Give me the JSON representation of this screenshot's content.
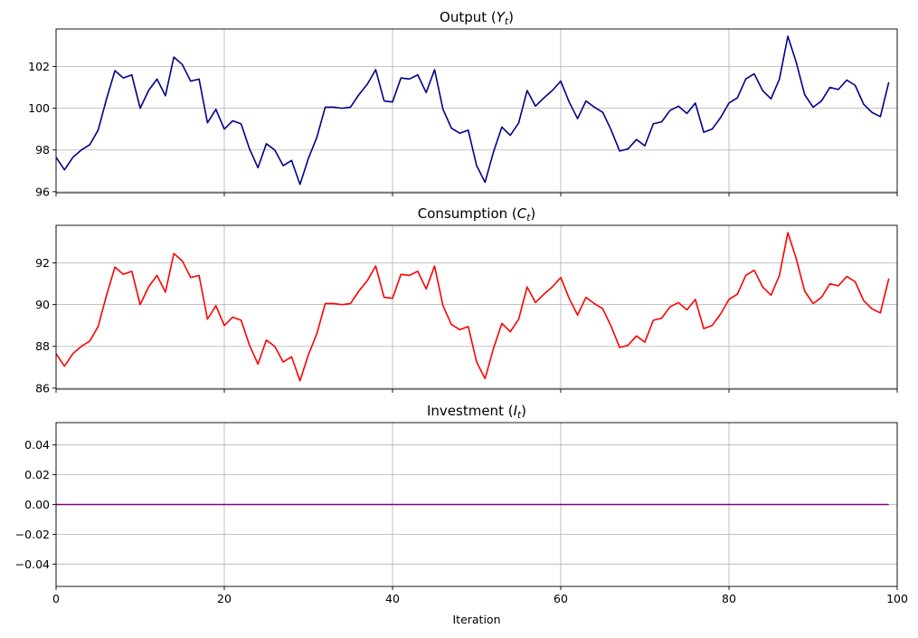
{
  "figure": {
    "xlabel": "Iteration"
  },
  "chart_data": [
    {
      "type": "line",
      "title_text": "Output (",
      "title_var": "Y",
      "title_sub": "t",
      "title_end": ")",
      "xlim": [
        0,
        100
      ],
      "ylim": [
        95.95,
        103.8
      ],
      "xticks": [
        0,
        20,
        40,
        60,
        80,
        100
      ],
      "xtick_labels_visible": false,
      "yticks": [
        96,
        98,
        100,
        102
      ],
      "grid": true,
      "series": [
        {
          "color": "#00008b",
          "x": [
            0,
            1,
            2,
            3,
            4,
            5,
            6,
            7,
            8,
            9,
            10,
            11,
            12,
            13,
            14,
            15,
            16,
            17,
            18,
            19,
            20,
            21,
            22,
            23,
            24,
            25,
            26,
            27,
            28,
            29,
            30,
            31,
            32,
            33,
            34,
            35,
            36,
            37,
            38,
            39,
            40,
            41,
            42,
            43,
            44,
            45,
            46,
            47,
            48,
            49,
            50,
            51,
            52,
            53,
            54,
            55,
            56,
            57,
            58,
            59,
            60,
            61,
            62,
            63,
            64,
            65,
            66,
            67,
            68,
            69,
            70,
            71,
            72,
            73,
            74,
            75,
            76,
            77,
            78,
            79,
            80,
            81,
            82,
            83,
            84,
            85,
            86,
            87,
            88,
            89,
            90,
            91,
            92,
            93,
            94,
            95,
            96,
            97,
            98,
            99
          ],
          "values": [
            97.65,
            97.05,
            97.65,
            98.0,
            98.25,
            98.95,
            100.45,
            101.8,
            101.45,
            101.6,
            100.0,
            100.85,
            101.4,
            100.6,
            102.45,
            102.1,
            101.3,
            101.4,
            99.3,
            99.95,
            99.0,
            99.4,
            99.25,
            98.05,
            97.15,
            98.3,
            98.0,
            97.25,
            97.5,
            96.35,
            97.6,
            98.6,
            100.05,
            100.05,
            100.0,
            100.05,
            100.65,
            101.15,
            101.85,
            100.35,
            100.3,
            101.45,
            101.4,
            101.6,
            100.75,
            101.85,
            99.95,
            99.05,
            98.8,
            98.95,
            97.25,
            96.45,
            97.9,
            99.1,
            98.7,
            99.3,
            100.85,
            100.1,
            100.5,
            100.85,
            101.3,
            100.3,
            99.5,
            100.35,
            100.05,
            99.8,
            98.95,
            97.95,
            98.05,
            98.5,
            98.2,
            99.25,
            99.35,
            99.9,
            100.1,
            99.75,
            100.25,
            98.85,
            99.0,
            99.55,
            100.25,
            100.5,
            101.4,
            101.65,
            100.85,
            100.45,
            101.4,
            103.45,
            102.2,
            100.65,
            100.05,
            100.35,
            101.0,
            100.9,
            101.35,
            101.1,
            100.2,
            99.8,
            99.6,
            101.25
          ]
        }
      ]
    },
    {
      "type": "line",
      "title_text": "Consumption (",
      "title_var": "C",
      "title_sub": "t",
      "title_end": ")",
      "xlim": [
        0,
        100
      ],
      "ylim": [
        85.95,
        93.8
      ],
      "xticks": [
        0,
        20,
        40,
        60,
        80,
        100
      ],
      "xtick_labels_visible": false,
      "yticks": [
        86,
        88,
        90,
        92
      ],
      "grid": true,
      "series": [
        {
          "color": "#ff0000",
          "x": [
            0,
            1,
            2,
            3,
            4,
            5,
            6,
            7,
            8,
            9,
            10,
            11,
            12,
            13,
            14,
            15,
            16,
            17,
            18,
            19,
            20,
            21,
            22,
            23,
            24,
            25,
            26,
            27,
            28,
            29,
            30,
            31,
            32,
            33,
            34,
            35,
            36,
            37,
            38,
            39,
            40,
            41,
            42,
            43,
            44,
            45,
            46,
            47,
            48,
            49,
            50,
            51,
            52,
            53,
            54,
            55,
            56,
            57,
            58,
            59,
            60,
            61,
            62,
            63,
            64,
            65,
            66,
            67,
            68,
            69,
            70,
            71,
            72,
            73,
            74,
            75,
            76,
            77,
            78,
            79,
            80,
            81,
            82,
            83,
            84,
            85,
            86,
            87,
            88,
            89,
            90,
            91,
            92,
            93,
            94,
            95,
            96,
            97,
            98,
            99
          ],
          "values": [
            87.65,
            87.05,
            87.65,
            88.0,
            88.25,
            88.95,
            90.45,
            91.8,
            91.45,
            91.6,
            90.0,
            90.85,
            91.4,
            90.6,
            92.45,
            92.1,
            91.3,
            91.4,
            89.3,
            89.95,
            89.0,
            89.4,
            89.25,
            88.05,
            87.15,
            88.3,
            88.0,
            87.25,
            87.5,
            86.35,
            87.6,
            88.6,
            90.05,
            90.05,
            90.0,
            90.05,
            90.65,
            91.15,
            91.85,
            90.35,
            90.3,
            91.45,
            91.4,
            91.6,
            90.75,
            91.85,
            89.95,
            89.05,
            88.8,
            88.95,
            87.25,
            86.45,
            87.9,
            89.1,
            88.7,
            89.3,
            90.85,
            90.1,
            90.5,
            90.85,
            91.3,
            90.3,
            89.5,
            90.35,
            90.05,
            89.8,
            88.95,
            87.95,
            88.05,
            88.5,
            88.2,
            89.25,
            89.35,
            89.9,
            90.1,
            89.75,
            90.25,
            88.85,
            89.0,
            89.55,
            90.25,
            90.5,
            91.4,
            91.65,
            90.85,
            90.45,
            91.4,
            93.45,
            92.2,
            90.65,
            90.05,
            90.35,
            91.0,
            90.9,
            91.35,
            91.1,
            90.2,
            89.8,
            89.6,
            91.25
          ]
        }
      ]
    },
    {
      "type": "line",
      "title_text": "Investment (",
      "title_var": "I",
      "title_sub": "t",
      "title_end": ")",
      "xlim": [
        0,
        100
      ],
      "ylim": [
        -0.055,
        0.055
      ],
      "xticks": [
        0,
        20,
        40,
        60,
        80,
        100
      ],
      "xtick_labels_visible": true,
      "xtick_labels": [
        "0",
        "20",
        "40",
        "60",
        "80",
        "100"
      ],
      "yticks": [
        -0.04,
        -0.02,
        0.0,
        0.02,
        0.04
      ],
      "ytick_labels": [
        "−0.04",
        "−0.02",
        "0.00",
        "0.02",
        "0.04"
      ],
      "grid": true,
      "series": [
        {
          "color": "#800080",
          "x": [
            0,
            1,
            2,
            3,
            4,
            5,
            6,
            7,
            8,
            9,
            10,
            11,
            12,
            13,
            14,
            15,
            16,
            17,
            18,
            19,
            20,
            21,
            22,
            23,
            24,
            25,
            26,
            27,
            28,
            29,
            30,
            31,
            32,
            33,
            34,
            35,
            36,
            37,
            38,
            39,
            40,
            41,
            42,
            43,
            44,
            45,
            46,
            47,
            48,
            49,
            50,
            51,
            52,
            53,
            54,
            55,
            56,
            57,
            58,
            59,
            60,
            61,
            62,
            63,
            64,
            65,
            66,
            67,
            68,
            69,
            70,
            71,
            72,
            73,
            74,
            75,
            76,
            77,
            78,
            79,
            80,
            81,
            82,
            83,
            84,
            85,
            86,
            87,
            88,
            89,
            90,
            91,
            92,
            93,
            94,
            95,
            96,
            97,
            98,
            99
          ],
          "values": [
            0,
            0,
            0,
            0,
            0,
            0,
            0,
            0,
            0,
            0,
            0,
            0,
            0,
            0,
            0,
            0,
            0,
            0,
            0,
            0,
            0,
            0,
            0,
            0,
            0,
            0,
            0,
            0,
            0,
            0,
            0,
            0,
            0,
            0,
            0,
            0,
            0,
            0,
            0,
            0,
            0,
            0,
            0,
            0,
            0,
            0,
            0,
            0,
            0,
            0,
            0,
            0,
            0,
            0,
            0,
            0,
            0,
            0,
            0,
            0,
            0,
            0,
            0,
            0,
            0,
            0,
            0,
            0,
            0,
            0,
            0,
            0,
            0,
            0,
            0,
            0,
            0,
            0,
            0,
            0,
            0,
            0,
            0,
            0,
            0,
            0,
            0,
            0,
            0,
            0,
            0,
            0,
            0,
            0,
            0,
            0,
            0,
            0,
            0,
            0
          ]
        }
      ]
    }
  ]
}
